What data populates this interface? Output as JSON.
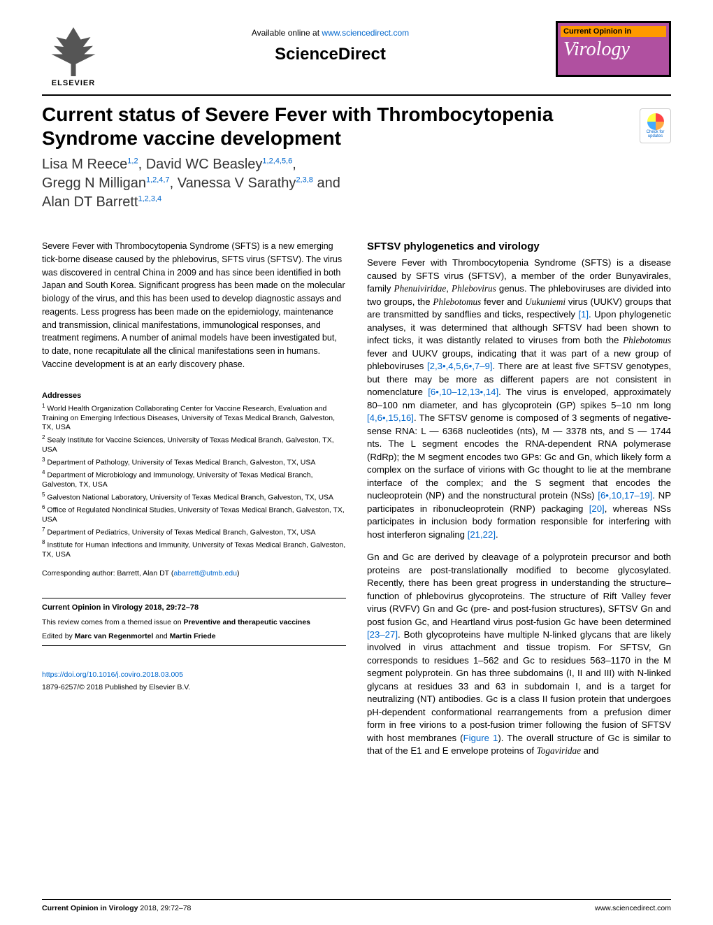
{
  "header": {
    "elsevier": "ELSEVIER",
    "available": "Available online at ",
    "sd_url": "www.sciencedirect.com",
    "sciencedirect": "ScienceDirect",
    "coviro_top": "Current Opinion in",
    "coviro_main": "Virology"
  },
  "title": "Current status of Severe Fever with Thrombocytopenia Syndrome vaccine development",
  "authors_html": "Lisa M Reece<sup>1,2</sup>, David WC Beasley<sup>1,2,4,5,6</sup>,\nGregg N Milligan<sup>1,2,4,7</sup>, Vanessa V Sarathy<sup>2,3,8</sup> and\nAlan DT Barrett<sup>1,2,3,4</sup>",
  "check_updates": "Check for updates",
  "abstract": "Severe Fever with Thrombocytopenia Syndrome (SFTS) is a new emerging tick-borne disease caused by the phlebovirus, SFTS virus (SFTSV). The virus was discovered in central China in 2009 and has since been identified in both Japan and South Korea. Significant progress has been made on the molecular biology of the virus, and this has been used to develop diagnostic assays and reagents. Less progress has been made on the epidemiology, maintenance and transmission, clinical manifestations, immunological responses, and treatment regimens. A number of animal models have been investigated but, to date, none recapitulate all the clinical manifestations seen in humans. Vaccine development is at an early discovery phase.",
  "addresses_heading": "Addresses",
  "affiliations": [
    "World Health Organization Collaborating Center for Vaccine Research, Evaluation and Training on Emerging Infectious Diseases, University of Texas Medical Branch, Galveston, TX, USA",
    "Sealy Institute for Vaccine Sciences, University of Texas Medical Branch, Galveston, TX, USA",
    "Department of Pathology, University of Texas Medical Branch, Galveston, TX, USA",
    "Department of Microbiology and Immunology, University of Texas Medical Branch, Galveston, TX, USA",
    "Galveston National Laboratory, University of Texas Medical Branch, Galveston, TX, USA",
    "Office of Regulated Nonclinical Studies, University of Texas Medical Branch, Galveston, TX, USA",
    "Department of Pediatrics, University of Texas Medical Branch, Galveston, TX, USA",
    "Institute for Human Infections and Immunity, University of Texas Medical Branch, Galveston, TX, USA"
  ],
  "corresponding": "Corresponding author: Barrett, Alan DT (",
  "corresponding_email": "abarrett@utmb.edu",
  "journal_info": "Current Opinion in Virology 2018, 29:72–78",
  "themed_issue": "This review comes from a themed issue on Preventive and therapeutic vaccines",
  "editors": "Edited by Marc van Regenmortel and Martin Friede",
  "doi": "https://doi.org/10.1016/j.coviro.2018.03.005",
  "copyright": "1879-6257/© 2018 Published by Elsevier B.V.",
  "section_heading": "SFTSV phylogenetics and virology",
  "para1_pre": "Severe Fever with Thrombocytopenia Syndrome (SFTS) is a disease caused by SFTS virus (SFTSV), a member of the order Bunyavirales, family ",
  "para1_phen": "Phenuiviridae",
  "para1_mid1": ", ",
  "para1_phlebo": "Phlebovirus",
  "para1_mid2": " genus. The phleboviruses are divided into two groups, the ",
  "para1_phlebotomus": "Phlebotomus",
  "para1_mid3": " fever and ",
  "para1_uuk": "Uukuniemi",
  "para1_post": " virus (UUKV) groups that are transmitted by sandflies and ticks, respectively ",
  "ref1": "[1]",
  "para1_cont": ". Upon phylogenetic analyses, it was determined that although SFTSV had been shown to infect ticks, it was distantly related to viruses from both the ",
  "para1_phlebotomus2": "Phlebotomus",
  "para1_cont2": " fever and UUKV groups, indicating that it was part of a new group of phleboviruses ",
  "ref2": "[2,3•,4,5,6•,7–9]",
  "para1_cont3": ". There are at least five SFTSV genotypes, but there may be more as different papers are not consistent in nomenclature ",
  "ref3": "[6•,10–12,13•,14]",
  "para1_cont4": ". The virus is enveloped, approximately 80–100 nm diameter, and has glycoprotein (GP) spikes 5–10 nm long ",
  "ref4": "[4,6•,15,16]",
  "para1_cont5": ". The SFTSV genome is composed of 3 segments of negative-sense RNA: L — 6368 nucleotides (nts), M — 3378 nts, and S — 1744 nts. The L segment encodes the RNA-dependent RNA polymerase (RdRp); the M segment encodes two GPs: Gc and Gn, which likely form a complex on the surface of virions with Gc thought to lie at the membrane interface of the complex; and the S segment that encodes the nucleoprotein (NP) and the nonstructural protein (NSs) ",
  "ref5": "[6•,10,17–19]",
  "para1_cont6": ". NP participates in ribonucleoprotein (RNP) packaging ",
  "ref6": "[20]",
  "para1_cont7": ", whereas NSs participates in inclusion body formation responsible for interfering with host interferon signaling ",
  "ref7": "[21,22]",
  "para1_end": ".",
  "para2_pre": "Gn and Gc are derived by cleavage of a polyprotein precursor and both proteins are post-translationally modified to become glycosylated. Recently, there has been great progress in understanding the structure–function of phlebovirus glycoproteins. The structure of Rift Valley fever virus (RVFV) Gn and Gc (pre- and post-fusion structures), SFTSV Gn and post fusion Gc, and Heartland virus post-fusion Gc have been determined ",
  "ref8": "[23–27]",
  "para2_mid": ". Both glycoproteins have multiple N-linked glycans that are likely involved in virus attachment and tissue tropism. For SFTSV, Gn corresponds to residues 1–562 and Gc to residues 563–1170 in the M segment polyprotein. Gn has three subdomains (I, II and III) with N-linked glycans at residues 33 and 63 in subdomain I, and is a target for neutralizing (NT) antibodies. Gc is a class II fusion protein that undergoes pH-dependent conformational rearrangements from a prefusion dimer form in free virions to a post-fusion trimer following the fusion of SFTSV with host membranes (",
  "fig1": "Figure 1",
  "para2_post": "). The overall structure of Gc is similar to that of the E1 and E envelope proteins of ",
  "para2_toga": "Togaviridae",
  "para2_end": " and",
  "footer_left": "Current Opinion in Virology",
  "footer_left2": " 2018, 29:72–78",
  "footer_right": "www.sciencedirect.com"
}
